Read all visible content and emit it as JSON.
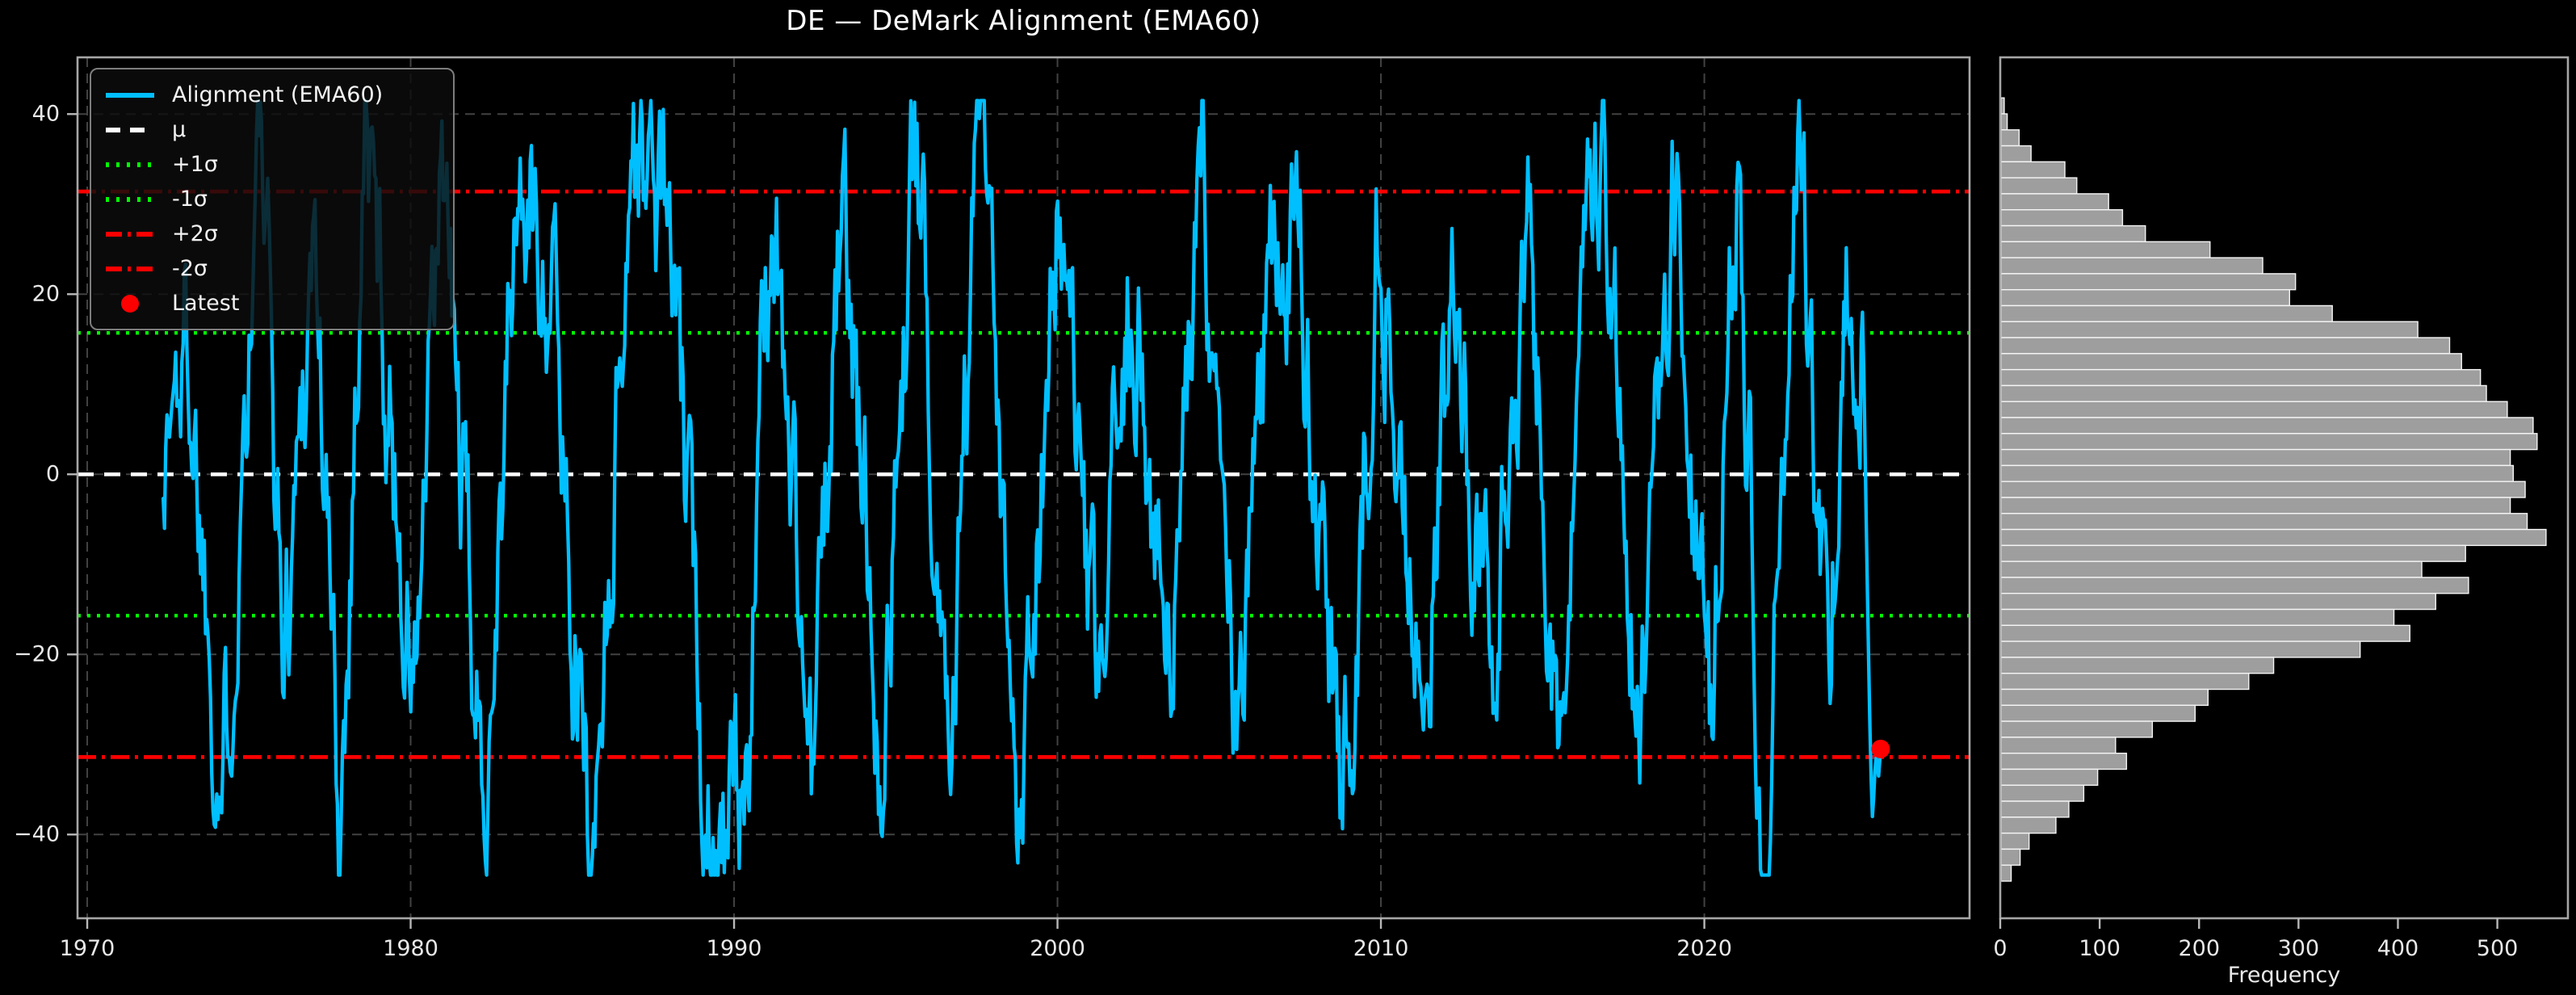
{
  "colors": {
    "background": "#000000",
    "line": "#00BFFF",
    "mu_line": "#ffffff",
    "sigma1_line": "#00ff00",
    "sigma2_line": "#ff0000",
    "latest_marker": "#ff0000",
    "hist_fill": "#9e9e9e",
    "hist_edge": "#f5f5f5",
    "grid": "#424242",
    "spine": "#a6a6a6",
    "tick": "#b8b8b8",
    "text": "#e8e8e8",
    "title_text": "#ffffff"
  },
  "legend": {
    "items": [
      {
        "label": "Alignment (EMA60)",
        "style": "solid-cyan"
      },
      {
        "label": "μ",
        "style": "dashed-white"
      },
      {
        "label": "+1σ",
        "style": "dotted-green"
      },
      {
        "label": "-1σ",
        "style": "dotted-green"
      },
      {
        "label": "+2σ",
        "style": "dashdot-red"
      },
      {
        "label": "-2σ",
        "style": "dashdot-red"
      },
      {
        "label": "Latest",
        "style": "marker-red"
      }
    ]
  },
  "chart_data": [
    {
      "type": "line",
      "name": "main",
      "title": "DE — DeMark Alignment (EMA60)",
      "series_name": "Alignment (EMA60)",
      "x_ticks": [
        1970,
        1980,
        1990,
        2000,
        2010,
        2020
      ],
      "y_ticks": [
        40,
        20,
        0,
        -20,
        -40
      ],
      "xlim": [
        1969.7,
        2028.2
      ],
      "ylim": [
        -49.3,
        46.3
      ],
      "grid": true,
      "legend_position": "upper-left",
      "stats": {
        "mu": 0.0,
        "sigma": 15.7,
        "plus1sigma": 15.7,
        "minus1sigma": -15.7,
        "plus2sigma": 31.4,
        "minus2sigma": -31.4
      },
      "latest_point": {
        "x": 2025.45,
        "y": -30.5
      },
      "data_min": -44.5,
      "data_max": 41.5,
      "line_synthesis": {
        "seed": 1337,
        "start_year": 1972.35,
        "end_year": 2025.45,
        "points_per_year": 26,
        "noise_phi": 0.72,
        "noise_amp": 9,
        "clamp": [
          -44.5,
          41.5
        ],
        "anchors": [
          [
            1972.35,
            3
          ],
          [
            1973.1,
            16
          ],
          [
            1974.2,
            -35
          ],
          [
            1975.3,
            38
          ],
          [
            1976.1,
            -20
          ],
          [
            1977.0,
            30
          ],
          [
            1977.8,
            -40
          ],
          [
            1978.6,
            40
          ],
          [
            1980.1,
            -25
          ],
          [
            1981.0,
            32
          ],
          [
            1982.2,
            -37
          ],
          [
            1983.3,
            30
          ],
          [
            1984.3,
            25
          ],
          [
            1985.6,
            -44.5
          ],
          [
            1986.8,
            37
          ],
          [
            1987.9,
            30
          ],
          [
            1989.0,
            -30
          ],
          [
            1990.2,
            -42
          ],
          [
            1991.2,
            33
          ],
          [
            1992.4,
            -35
          ],
          [
            1993.3,
            28
          ],
          [
            1994.6,
            -28
          ],
          [
            1995.6,
            36
          ],
          [
            1996.6,
            -25
          ],
          [
            1997.6,
            38
          ],
          [
            1998.7,
            -40
          ],
          [
            2000.0,
            30
          ],
          [
            2001.2,
            -30
          ],
          [
            2002.3,
            25
          ],
          [
            2003.5,
            -25
          ],
          [
            2004.5,
            35
          ],
          [
            2005.6,
            -32
          ],
          [
            2006.7,
            30
          ],
          [
            2007.5,
            25
          ],
          [
            2008.8,
            -42
          ],
          [
            2010.0,
            37
          ],
          [
            2011.2,
            -28
          ],
          [
            2012.3,
            22
          ],
          [
            2013.4,
            -25
          ],
          [
            2014.5,
            30
          ],
          [
            2015.5,
            -28
          ],
          [
            2016.9,
            41.5
          ],
          [
            2018.0,
            -35
          ],
          [
            2019.0,
            28
          ],
          [
            2020.2,
            -28
          ],
          [
            2021.0,
            35
          ],
          [
            2021.9,
            -41
          ],
          [
            2022.9,
            35
          ],
          [
            2023.8,
            -20
          ],
          [
            2024.5,
            20
          ]
        ],
        "tail": [
          15,
          18,
          12,
          4,
          -5,
          -13,
          -21,
          -28,
          -34,
          -38,
          -36,
          -33,
          -31.5,
          -32.5,
          -33.5,
          -30.5
        ]
      }
    },
    {
      "type": "bar",
      "name": "histogram",
      "orientation": "horizontal",
      "xlabel": "Frequency",
      "x_ticks": [
        0,
        100,
        200,
        300,
        400,
        500
      ],
      "xlim": [
        0,
        571
      ],
      "grid": false,
      "bin_top_value": 41.8,
      "bin_width": 1.775,
      "values_top_to_bottom": [
        4,
        7,
        19,
        31,
        65,
        77,
        109,
        123,
        146,
        211,
        264,
        297,
        291,
        334,
        420,
        452,
        464,
        483,
        489,
        510,
        536,
        540,
        513,
        516,
        528,
        513,
        530,
        549,
        468,
        424,
        471,
        438,
        396,
        412,
        362,
        275,
        250,
        209,
        196,
        153,
        116,
        127,
        98,
        84,
        69,
        56,
        29,
        20,
        11
      ]
    }
  ]
}
